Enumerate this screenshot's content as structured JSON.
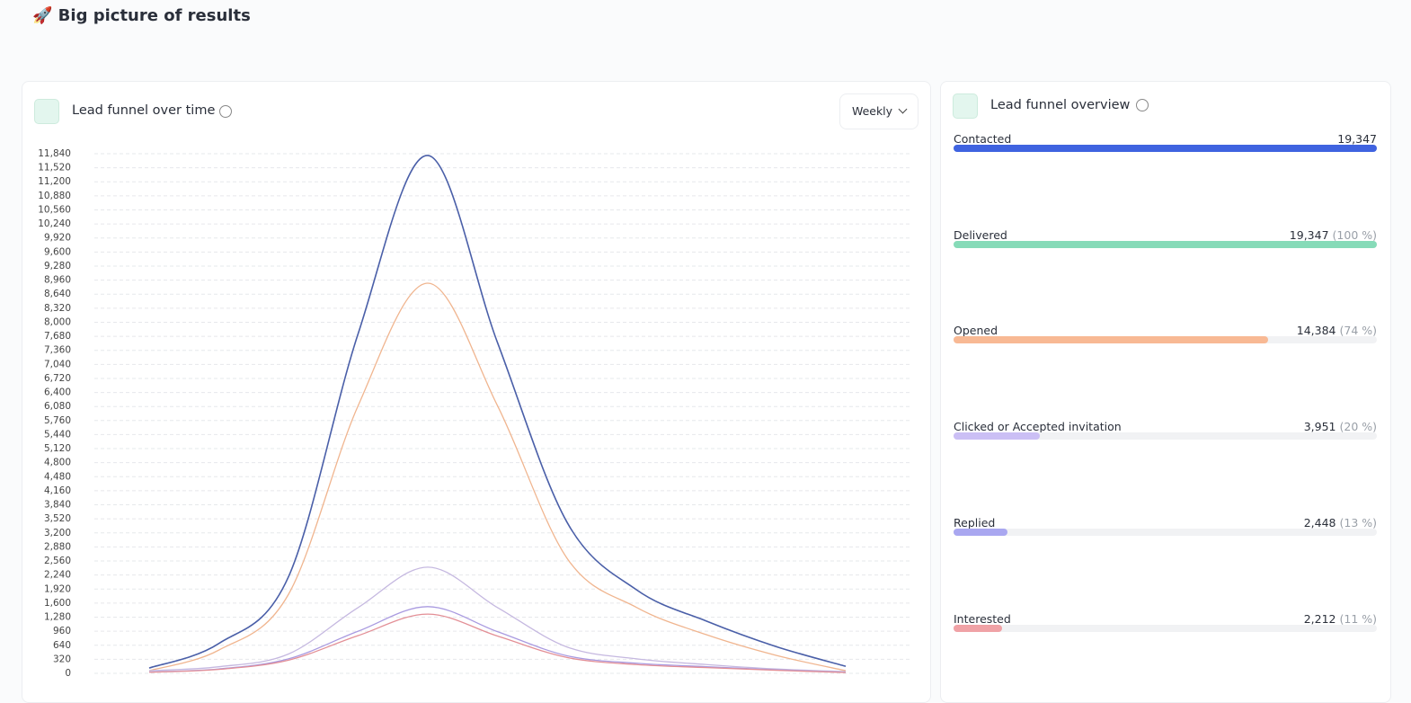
{
  "header": {
    "title": "🚀 Big picture of results"
  },
  "left_panel": {
    "title": "Lead funnel over time",
    "period": "Weekly",
    "chart_data": {
      "type": "line",
      "categories": [
        null,
        null,
        null,
        null,
        null,
        null,
        null,
        null,
        null,
        null,
        null
      ],
      "ylim": [
        0,
        11840
      ],
      "yticks": [
        0,
        320,
        640,
        960,
        {
          "value": 1280,
          "label": "1,280"
        },
        {
          "value": 1600,
          "label": "1,600"
        },
        {
          "value": 1920,
          "label": "1,920"
        },
        {
          "value": 2240,
          "label": "2,240"
        },
        {
          "value": 2560,
          "label": "2,560"
        },
        {
          "value": 2880,
          "label": "2,880"
        },
        {
          "value": 3200,
          "label": "3,200"
        },
        {
          "value": 3520,
          "label": "3,520"
        },
        {
          "value": 3840,
          "label": "3,840"
        },
        {
          "value": 4160,
          "label": "4,160"
        },
        {
          "value": 4480,
          "label": "4,480"
        },
        {
          "value": 4800,
          "label": "4,800"
        },
        {
          "value": 5120,
          "label": "5,120"
        },
        {
          "value": 5440,
          "label": "5,440"
        },
        {
          "value": 5760,
          "label": "5,760"
        },
        {
          "value": 6080,
          "label": "6,080"
        },
        {
          "value": 6400,
          "label": "6,400"
        },
        {
          "value": 6720,
          "label": "6,720"
        },
        {
          "value": 7040,
          "label": "7,040"
        },
        {
          "value": 7360,
          "label": "7,360"
        },
        {
          "value": 7680,
          "label": "7,680"
        },
        {
          "value": 8000,
          "label": "8,000"
        },
        {
          "value": 8320,
          "label": "8,320"
        },
        {
          "value": 8640,
          "label": "8,640"
        },
        {
          "value": 8960,
          "label": "8,960"
        },
        {
          "value": 9280,
          "label": "9,280"
        },
        {
          "value": 9600,
          "label": "9,600"
        },
        {
          "value": 9920,
          "label": "9,920"
        },
        {
          "value": 10240,
          "label": "10,240"
        },
        {
          "value": 10560,
          "label": "10,560"
        },
        {
          "value": 10880,
          "label": "10,880"
        },
        {
          "value": 11200,
          "label": "11,200"
        },
        {
          "value": 11520,
          "label": "11,520"
        },
        {
          "value": 11840,
          "label": "11,840"
        }
      ],
      "grid": true,
      "series": [
        {
          "color": "#4a5fa8",
          "values": [
            120,
            680,
            2200,
            7740,
            11800,
            7540,
            3440,
            1900,
            1190,
            610,
            160
          ]
        },
        {
          "color": "#f0b58f",
          "values": [
            60,
            530,
            1800,
            6100,
            8890,
            6100,
            2620,
            1500,
            880,
            410,
            60
          ]
        },
        {
          "color": "#c5b8e0",
          "values": [
            60,
            150,
            440,
            1500,
            2420,
            1500,
            600,
            330,
            200,
            100,
            40
          ]
        },
        {
          "color": "#a99ae0",
          "values": [
            30,
            100,
            330,
            960,
            1520,
            950,
            400,
            230,
            150,
            80,
            20
          ]
        },
        {
          "color": "#e38f96",
          "values": [
            25,
            90,
            300,
            860,
            1350,
            850,
            360,
            200,
            130,
            70,
            18
          ]
        }
      ]
    }
  },
  "right_panel": {
    "title": "Lead funnel overview",
    "items": [
      {
        "label": "Contacted",
        "value": 19347,
        "value_label": "19,347",
        "color": "#3f63e0"
      },
      {
        "label": "Delivered",
        "value": 19347,
        "value_label": "19,347",
        "pct_label": "(100 %)",
        "color": "#86dbb8"
      },
      {
        "label": "Opened",
        "value": 14384,
        "value_label": "14,384",
        "pct_label": "(74 %)",
        "color": "#f8b994"
      },
      {
        "label": "Clicked or Accepted invitation",
        "value": 3951,
        "value_label": "3,951",
        "pct_label": "(20 %)",
        "color": "#cbbff5"
      },
      {
        "label": "Replied",
        "value": 2448,
        "value_label": "2,448",
        "pct_label": "(13 %)",
        "color": "#a9a7f0"
      },
      {
        "label": "Interested",
        "value": 2212,
        "value_label": "2,212",
        "pct_label": "(11 %)",
        "color": "#f0a2a6"
      }
    ]
  }
}
